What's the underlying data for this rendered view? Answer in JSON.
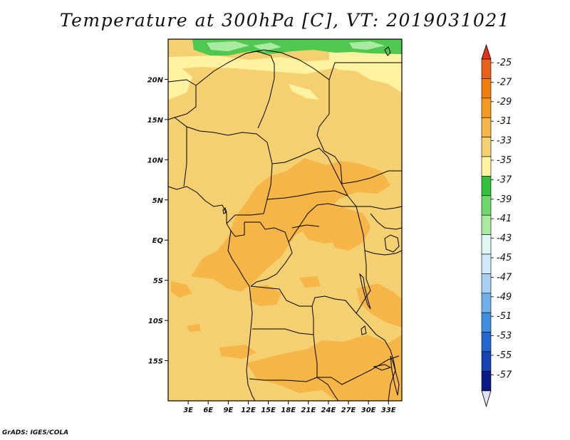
{
  "title": "Temperature at 300hPa [C], VT: 2019031021",
  "credit": "GrADS: IGES/COLA",
  "map": {
    "lon_range": [
      0,
      35
    ],
    "lat_range": [
      -20,
      25
    ],
    "x_ticks": [
      "3E",
      "6E",
      "9E",
      "12E",
      "15E",
      "18E",
      "21E",
      "24E",
      "27E",
      "30E",
      "33E"
    ],
    "x_tick_values": [
      3,
      6,
      9,
      12,
      15,
      18,
      21,
      24,
      27,
      30,
      33
    ],
    "y_ticks": [
      "20N",
      "15N",
      "10N",
      "5N",
      "EQ",
      "5S",
      "10S",
      "15S"
    ],
    "y_tick_values": [
      20,
      15,
      10,
      5,
      0,
      -5,
      -10,
      -15
    ],
    "dominant_band": "-33 to -31",
    "colors": {
      "warm_band": "#f5d071",
      "cool_band": "#fff2a0",
      "warmer_band": "#f5b547",
      "green_band": "#4fc84f",
      "light_green_band": "#a8eba0",
      "border": "#000000"
    }
  },
  "colorbar": {
    "labels": [
      "-25",
      "-27",
      "-29",
      "-31",
      "-33",
      "-35",
      "-37",
      "-39",
      "-41",
      "-43",
      "-45",
      "-47",
      "-49",
      "-51",
      "-53",
      "-55",
      "-57"
    ],
    "colors": [
      "#e8601a",
      "#f07f10",
      "#f59a1e",
      "#f5b547",
      "#f5d071",
      "#fff2a0",
      "#31c13a",
      "#6ed86a",
      "#a8eba0",
      "#dff8f6",
      "#cfe9fb",
      "#a5d0f4",
      "#6fb0ec",
      "#3f8ee0",
      "#2166d1",
      "#1244b2",
      "#0a1a84"
    ],
    "top_arrow_color": "#e3341a",
    "bottom_arrow_color": "#dfe2f7"
  }
}
